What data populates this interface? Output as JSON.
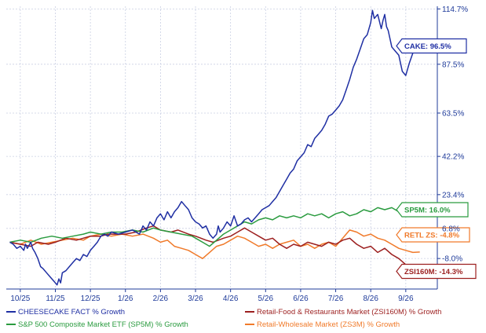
{
  "chart_data": {
    "type": "line",
    "x_ticks": [
      "10/25",
      "11/25",
      "12/25",
      "1/26",
      "2/26",
      "3/26",
      "4/26",
      "5/26",
      "6/26",
      "7/26",
      "8/26",
      "9/26"
    ],
    "y_ticks": [
      "114.7%",
      "87.5%",
      "63.5%",
      "42.2%",
      "23.4%",
      "6.8%",
      "-8.0%"
    ],
    "y_tick_values": [
      114.7,
      87.5,
      63.5,
      42.2,
      23.4,
      6.8,
      -8.0
    ],
    "ylim": [
      -23,
      116
    ],
    "x_range": [
      -0.4,
      11.9
    ],
    "scale": "linear",
    "grid": true,
    "series": [
      {
        "name": "CHEESECAKE FACT % Growth",
        "color": "#1f2fa3",
        "label": "CAKE: 96.5%",
        "last": 96.5,
        "points": [
          [
            -0.3,
            0
          ],
          [
            -0.2,
            -1
          ],
          [
            -0.1,
            -3
          ],
          [
            0,
            -2
          ],
          [
            0.1,
            -4
          ],
          [
            0.15,
            -1
          ],
          [
            0.2,
            -3
          ],
          [
            0.3,
            0
          ],
          [
            0.35,
            -3
          ],
          [
            0.42,
            -5
          ],
          [
            0.5,
            -8
          ],
          [
            0.58,
            -12
          ],
          [
            0.65,
            -13
          ],
          [
            0.75,
            -15
          ],
          [
            0.85,
            -17
          ],
          [
            0.95,
            -19
          ],
          [
            1.05,
            -21
          ],
          [
            1.1,
            -18
          ],
          [
            1.15,
            -20
          ],
          [
            1.2,
            -15
          ],
          [
            1.3,
            -14
          ],
          [
            1.4,
            -12
          ],
          [
            1.5,
            -10
          ],
          [
            1.6,
            -8
          ],
          [
            1.7,
            -9
          ],
          [
            1.8,
            -6
          ],
          [
            1.9,
            -7
          ],
          [
            2.0,
            -4
          ],
          [
            2.1,
            -2
          ],
          [
            2.2,
            0
          ],
          [
            2.3,
            3
          ],
          [
            2.4,
            4
          ],
          [
            2.5,
            3
          ],
          [
            2.6,
            5
          ],
          [
            2.8,
            4
          ],
          [
            3.0,
            5
          ],
          [
            3.2,
            6
          ],
          [
            3.4,
            4
          ],
          [
            3.5,
            8
          ],
          [
            3.6,
            6
          ],
          [
            3.7,
            10
          ],
          [
            3.8,
            8
          ],
          [
            3.9,
            12
          ],
          [
            4.0,
            14
          ],
          [
            4.1,
            11
          ],
          [
            4.2,
            15
          ],
          [
            4.3,
            12
          ],
          [
            4.4,
            15
          ],
          [
            4.5,
            17
          ],
          [
            4.6,
            20
          ],
          [
            4.7,
            18
          ],
          [
            4.75,
            17
          ],
          [
            4.8,
            16
          ],
          [
            4.9,
            12
          ],
          [
            5.0,
            10
          ],
          [
            5.1,
            9
          ],
          [
            5.2,
            7
          ],
          [
            5.3,
            8
          ],
          [
            5.4,
            4
          ],
          [
            5.5,
            2
          ],
          [
            5.6,
            4
          ],
          [
            5.65,
            8
          ],
          [
            5.7,
            5
          ],
          [
            5.8,
            7
          ],
          [
            5.9,
            10
          ],
          [
            6.0,
            8
          ],
          [
            6.1,
            13
          ],
          [
            6.2,
            8
          ],
          [
            6.3,
            9
          ],
          [
            6.4,
            11
          ],
          [
            6.5,
            12
          ],
          [
            6.6,
            10
          ],
          [
            6.7,
            12
          ],
          [
            6.8,
            14
          ],
          [
            6.9,
            16
          ],
          [
            7.0,
            17
          ],
          [
            7.1,
            18
          ],
          [
            7.2,
            20
          ],
          [
            7.3,
            22
          ],
          [
            7.4,
            25
          ],
          [
            7.5,
            28
          ],
          [
            7.6,
            31
          ],
          [
            7.7,
            34
          ],
          [
            7.8,
            36
          ],
          [
            7.9,
            40
          ],
          [
            8.0,
            42
          ],
          [
            8.1,
            44
          ],
          [
            8.2,
            48
          ],
          [
            8.3,
            47
          ],
          [
            8.4,
            51
          ],
          [
            8.5,
            53
          ],
          [
            8.6,
            55
          ],
          [
            8.7,
            58
          ],
          [
            8.8,
            62
          ],
          [
            8.9,
            63
          ],
          [
            9.0,
            65
          ],
          [
            9.1,
            67
          ],
          [
            9.2,
            70
          ],
          [
            9.3,
            75
          ],
          [
            9.4,
            80
          ],
          [
            9.5,
            86
          ],
          [
            9.6,
            90
          ],
          [
            9.7,
            95
          ],
          [
            9.8,
            100
          ],
          [
            9.9,
            102
          ],
          [
            10.0,
            108
          ],
          [
            10.05,
            114
          ],
          [
            10.1,
            110
          ],
          [
            10.2,
            112
          ],
          [
            10.3,
            105
          ],
          [
            10.35,
            109
          ],
          [
            10.4,
            112
          ],
          [
            10.45,
            106
          ],
          [
            10.5,
            104
          ],
          [
            10.6,
            96
          ],
          [
            10.7,
            94
          ],
          [
            10.8,
            92
          ],
          [
            10.9,
            84
          ],
          [
            11.0,
            82
          ],
          [
            11.1,
            88
          ],
          [
            11.2,
            93
          ],
          [
            11.3,
            95
          ],
          [
            11.4,
            96.5
          ]
        ]
      },
      {
        "name": "Retail-Food & Restaurants Market (ZSI160M) % Growth",
        "color": "#9c1f1f",
        "label": "ZSI160M: -14.3%",
        "last": -14.3,
        "points": [
          [
            -0.3,
            0
          ],
          [
            0,
            -1
          ],
          [
            0.3,
            -2
          ],
          [
            0.5,
            0
          ],
          [
            0.8,
            -1
          ],
          [
            1.0,
            0
          ],
          [
            1.3,
            2
          ],
          [
            1.6,
            1
          ],
          [
            2.0,
            3
          ],
          [
            2.3,
            3
          ],
          [
            2.5,
            4
          ],
          [
            2.8,
            4
          ],
          [
            3.0,
            4
          ],
          [
            3.3,
            5
          ],
          [
            3.6,
            7
          ],
          [
            3.8,
            8
          ],
          [
            4.0,
            6
          ],
          [
            4.3,
            5
          ],
          [
            4.5,
            6
          ],
          [
            4.8,
            4
          ],
          [
            5.0,
            3
          ],
          [
            5.3,
            1
          ],
          [
            5.5,
            0
          ],
          [
            5.8,
            2
          ],
          [
            6.0,
            3
          ],
          [
            6.2,
            5
          ],
          [
            6.4,
            7
          ],
          [
            6.6,
            5
          ],
          [
            6.8,
            3
          ],
          [
            7.0,
            1
          ],
          [
            7.2,
            2
          ],
          [
            7.4,
            -1
          ],
          [
            7.6,
            -3
          ],
          [
            7.8,
            -1
          ],
          [
            8.0,
            -2
          ],
          [
            8.2,
            0
          ],
          [
            8.4,
            -1
          ],
          [
            8.6,
            -2
          ],
          [
            8.8,
            0
          ],
          [
            9.0,
            -1
          ],
          [
            9.2,
            1
          ],
          [
            9.4,
            2
          ],
          [
            9.6,
            -1
          ],
          [
            9.8,
            -3
          ],
          [
            10.0,
            -2
          ],
          [
            10.2,
            -5
          ],
          [
            10.4,
            -3
          ],
          [
            10.6,
            -6
          ],
          [
            10.8,
            -8
          ],
          [
            11.0,
            -11
          ],
          [
            11.2,
            -13
          ],
          [
            11.4,
            -14.3
          ]
        ]
      },
      {
        "name": "S&P 500 Composite Market ETF (SP5M) % Growth",
        "color": "#2a9b3f",
        "label": "SP5M: 16.0%",
        "last": 16.0,
        "points": [
          [
            -0.3,
            0
          ],
          [
            0,
            1
          ],
          [
            0.3,
            0
          ],
          [
            0.6,
            2
          ],
          [
            0.9,
            3
          ],
          [
            1.2,
            2
          ],
          [
            1.5,
            3
          ],
          [
            1.8,
            4
          ],
          [
            2.0,
            5
          ],
          [
            2.3,
            4
          ],
          [
            2.6,
            5
          ],
          [
            2.9,
            5
          ],
          [
            3.2,
            6
          ],
          [
            3.5,
            5
          ],
          [
            3.8,
            7
          ],
          [
            4.0,
            6
          ],
          [
            4.3,
            5
          ],
          [
            4.6,
            4
          ],
          [
            4.9,
            3
          ],
          [
            5.2,
            0
          ],
          [
            5.4,
            -2
          ],
          [
            5.6,
            1
          ],
          [
            5.8,
            4
          ],
          [
            6.0,
            6
          ],
          [
            6.2,
            8
          ],
          [
            6.4,
            10
          ],
          [
            6.6,
            9
          ],
          [
            6.8,
            11
          ],
          [
            7.0,
            12
          ],
          [
            7.2,
            11
          ],
          [
            7.4,
            13
          ],
          [
            7.6,
            12
          ],
          [
            7.8,
            13
          ],
          [
            8.0,
            12
          ],
          [
            8.2,
            14
          ],
          [
            8.4,
            13
          ],
          [
            8.6,
            14
          ],
          [
            8.8,
            12
          ],
          [
            9.0,
            14
          ],
          [
            9.2,
            15
          ],
          [
            9.4,
            13
          ],
          [
            9.6,
            14
          ],
          [
            9.8,
            16
          ],
          [
            10.0,
            15
          ],
          [
            10.2,
            17
          ],
          [
            10.4,
            16
          ],
          [
            10.6,
            17
          ],
          [
            10.8,
            15
          ],
          [
            11.0,
            16
          ],
          [
            11.2,
            17
          ],
          [
            11.4,
            16
          ]
        ]
      },
      {
        "name": "Retail-Wholesale Market (ZS3M) % Growth",
        "color": "#f07a2a",
        "label": "RETL ZS: -4.8%",
        "last": -4.8,
        "points": [
          [
            -0.3,
            0
          ],
          [
            0,
            -1
          ],
          [
            0.3,
            1
          ],
          [
            0.6,
            -1
          ],
          [
            0.9,
            0
          ],
          [
            1.2,
            1
          ],
          [
            1.5,
            2
          ],
          [
            1.8,
            1
          ],
          [
            2.0,
            3
          ],
          [
            2.3,
            4
          ],
          [
            2.6,
            3
          ],
          [
            2.9,
            4
          ],
          [
            3.2,
            3
          ],
          [
            3.5,
            4
          ],
          [
            3.8,
            2
          ],
          [
            4.0,
            0
          ],
          [
            4.2,
            1
          ],
          [
            4.4,
            -2
          ],
          [
            4.6,
            -3
          ],
          [
            4.8,
            -4
          ],
          [
            5.0,
            -6
          ],
          [
            5.2,
            -8
          ],
          [
            5.4,
            -5
          ],
          [
            5.6,
            -2
          ],
          [
            5.8,
            -1
          ],
          [
            6.0,
            1
          ],
          [
            6.2,
            3
          ],
          [
            6.4,
            2
          ],
          [
            6.6,
            0
          ],
          [
            6.8,
            -2
          ],
          [
            7.0,
            -1
          ],
          [
            7.2,
            -3
          ],
          [
            7.4,
            -1
          ],
          [
            7.6,
            0
          ],
          [
            7.8,
            1
          ],
          [
            8.0,
            -2
          ],
          [
            8.2,
            -1
          ],
          [
            8.4,
            -3
          ],
          [
            8.6,
            -1
          ],
          [
            8.8,
            0
          ],
          [
            9.0,
            -2
          ],
          [
            9.2,
            2
          ],
          [
            9.4,
            6
          ],
          [
            9.6,
            5
          ],
          [
            9.8,
            3
          ],
          [
            10.0,
            4
          ],
          [
            10.2,
            2
          ],
          [
            10.4,
            1
          ],
          [
            10.6,
            -1
          ],
          [
            10.8,
            -3
          ],
          [
            11.0,
            -4
          ],
          [
            11.2,
            -5
          ],
          [
            11.4,
            -4.8
          ]
        ]
      }
    ]
  }
}
